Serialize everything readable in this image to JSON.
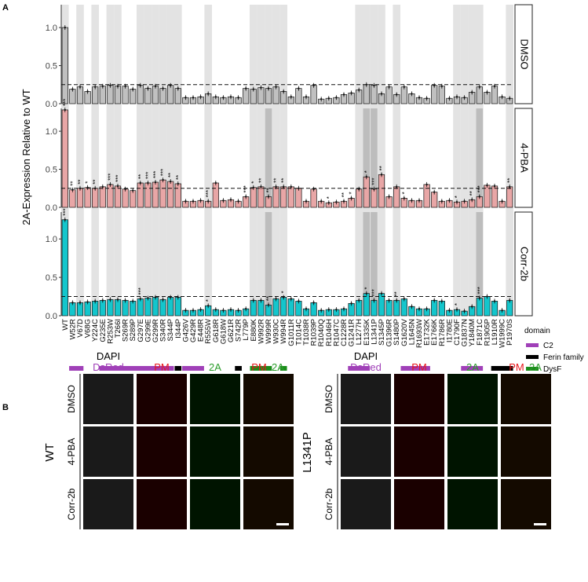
{
  "panel_letters": {
    "a": "A",
    "b": "B"
  },
  "chart_data": {
    "type": "bar",
    "ylabel": "2A-Expression Relative to WT",
    "threshold_line": 0.25,
    "categories": [
      "WT",
      "W52R",
      "V67D",
      "V68G",
      "Y224C",
      "G235E",
      "R253W",
      "T266I",
      "S269R",
      "S289P",
      "G297E",
      "G299E",
      "G299R",
      "S340R",
      "S344P",
      "I344P",
      "G426V",
      "G429R",
      "E448R",
      "R555W",
      "G618R",
      "G618W",
      "G621R",
      "S742R",
      "L779P",
      "E880K",
      "W992R",
      "W999R",
      "W930C",
      "W994R",
      "G1011R",
      "T1014C",
      "T1038R",
      "R1039P",
      "R1040Q",
      "R1046H",
      "R1047C",
      "C1228R",
      "G1241R",
      "L1277H",
      "E1335K",
      "L1341P",
      "S1345P",
      "G1396R",
      "S1480P",
      "G1620V",
      "L1645N",
      "R1693W",
      "E1732K",
      "E1766K",
      "R1786R",
      "I1780E",
      "C1790F",
      "G1837N",
      "Y1840M",
      "F1871C",
      "R1905P",
      "L1910R",
      "W1999C",
      "P1970S"
    ],
    "shaded_categories": [
      "WT",
      "V67D",
      "Y224C",
      "R253W",
      "T266I",
      "G297E",
      "G299E",
      "G299R",
      "S340R",
      "S344P",
      "I344P",
      "R555W",
      "E880K",
      "W992R",
      "W999R",
      "W930C",
      "W994R",
      "L1277H",
      "E1335K",
      "L1341P",
      "S1345P",
      "S1480P",
      "C1790F",
      "G1837N",
      "Y1840M",
      "F1871C",
      "P1970S"
    ],
    "dark_shaded_categories": [
      "W999R",
      "E1335K",
      "L1341P",
      "F1871C"
    ],
    "rows": [
      {
        "label": "DMSO",
        "color": "#c0c0c0",
        "ylim": [
          0,
          1.3
        ],
        "yticks": [
          0.0,
          0.5,
          1.0
        ],
        "values": [
          1.0,
          0.19,
          0.22,
          0.16,
          0.22,
          0.23,
          0.24,
          0.23,
          0.23,
          0.19,
          0.24,
          0.2,
          0.23,
          0.2,
          0.24,
          0.2,
          0.08,
          0.08,
          0.09,
          0.13,
          0.09,
          0.08,
          0.09,
          0.08,
          0.2,
          0.19,
          0.21,
          0.2,
          0.22,
          0.16,
          0.09,
          0.2,
          0.09,
          0.24,
          0.06,
          0.07,
          0.08,
          0.12,
          0.14,
          0.18,
          0.25,
          0.24,
          0.13,
          0.22,
          0.12,
          0.22,
          0.13,
          0.08,
          0.07,
          0.24,
          0.23,
          0.07,
          0.09,
          0.08,
          0.15,
          0.22,
          0.15,
          0.23,
          0.09,
          0.07
        ]
      },
      {
        "label": "4-PBA",
        "color": "#e8a6a6",
        "ylim": [
          0,
          1.3
        ],
        "yticks": [
          0.0,
          0.5,
          1.0
        ],
        "values": [
          1.28,
          0.23,
          0.25,
          0.26,
          0.25,
          0.27,
          0.3,
          0.28,
          0.24,
          0.22,
          0.32,
          0.32,
          0.33,
          0.36,
          0.34,
          0.31,
          0.08,
          0.08,
          0.09,
          0.08,
          0.32,
          0.09,
          0.1,
          0.08,
          0.14,
          0.26,
          0.27,
          0.14,
          0.27,
          0.27,
          0.27,
          0.25,
          0.08,
          0.24,
          0.08,
          0.06,
          0.07,
          0.08,
          0.12,
          0.24,
          0.4,
          0.24,
          0.43,
          0.14,
          0.27,
          0.12,
          0.09,
          0.09,
          0.3,
          0.2,
          0.08,
          0.09,
          0.07,
          0.08,
          0.1,
          0.14,
          0.29,
          0.28,
          0.08,
          0.27
        ]
      },
      {
        "label": "Corr-2b",
        "color": "#14c6cc",
        "ylim": [
          0,
          1.35
        ],
        "yticks": [
          0.0,
          0.5,
          1.0
        ],
        "values": [
          1.25,
          0.17,
          0.17,
          0.18,
          0.19,
          0.2,
          0.21,
          0.21,
          0.2,
          0.19,
          0.22,
          0.23,
          0.24,
          0.21,
          0.24,
          0.24,
          0.07,
          0.07,
          0.08,
          0.13,
          0.08,
          0.07,
          0.08,
          0.07,
          0.09,
          0.2,
          0.2,
          0.14,
          0.22,
          0.24,
          0.22,
          0.19,
          0.09,
          0.17,
          0.07,
          0.08,
          0.08,
          0.09,
          0.16,
          0.2,
          0.29,
          0.2,
          0.29,
          0.2,
          0.2,
          0.22,
          0.12,
          0.09,
          0.09,
          0.2,
          0.19,
          0.07,
          0.08,
          0.06,
          0.12,
          0.23,
          0.25,
          0.19,
          0.07,
          0.2
        ]
      }
    ],
    "significance": [
      {
        "row": "4-PBA",
        "marks": [
          [
            "WT",
            "***"
          ],
          [
            "W52R",
            "**"
          ],
          [
            "V67D",
            "**"
          ],
          [
            "V68G",
            "*"
          ],
          [
            "Y224C",
            "**"
          ],
          [
            "R253W",
            "***"
          ],
          [
            "T266I",
            "***"
          ],
          [
            "G297E",
            "**"
          ],
          [
            "G299E",
            "***"
          ],
          [
            "G299R",
            "***"
          ],
          [
            "S340R",
            "***"
          ],
          [
            "S344P",
            "**"
          ],
          [
            "I344P",
            "**"
          ],
          [
            "R555W",
            "***"
          ],
          [
            "L779P",
            "***"
          ],
          [
            "E880K",
            "*"
          ],
          [
            "W992R",
            "**"
          ],
          [
            "W999R",
            "**"
          ],
          [
            "W930C",
            "**"
          ],
          [
            "W994R",
            "**"
          ],
          [
            "R1046H",
            "*"
          ],
          [
            "C1228R",
            "**"
          ],
          [
            "G1241R",
            "*"
          ],
          [
            "E1335K",
            "*"
          ],
          [
            "L1341P",
            "***"
          ],
          [
            "S1345P",
            "**"
          ],
          [
            "G1620V",
            "*"
          ],
          [
            "C1790F",
            "*"
          ],
          [
            "Y1840M",
            "**"
          ],
          [
            "F1871C",
            "***"
          ],
          [
            "P1970S",
            "**"
          ]
        ]
      },
      {
        "row": "Corr-2b",
        "marks": [
          [
            "WT",
            "***"
          ],
          [
            "G297E",
            "***"
          ],
          [
            "R555W",
            "*"
          ],
          [
            "W999R",
            "**"
          ],
          [
            "W994R",
            "*"
          ],
          [
            "E1335K",
            "*"
          ],
          [
            "L1341P",
            "***"
          ],
          [
            "S1480P",
            "**"
          ],
          [
            "C1790F",
            "*"
          ],
          [
            "F1871C",
            "***"
          ]
        ]
      }
    ],
    "domains": {
      "title": "domain",
      "legend": [
        {
          "name": "C2",
          "color": "#a040b8"
        },
        {
          "name": "Ferin family",
          "color": "#000000"
        },
        {
          "name": "DysF",
          "color": "#1a8c1a"
        }
      ],
      "bars": [
        {
          "domain": "C2",
          "from": "W52R",
          "to": "V67D"
        },
        {
          "domain": "C2",
          "from": "G235E",
          "to": "S344P"
        },
        {
          "domain": "Ferin family",
          "from": "I344P",
          "to": "I344P"
        },
        {
          "domain": "C2",
          "from": "G426V",
          "to": "E448R"
        },
        {
          "domain": "Ferin family",
          "from": "S742R",
          "to": "S742R"
        },
        {
          "domain": "DysF",
          "from": "E880K",
          "to": "W999R"
        },
        {
          "domain": "DysF",
          "from": "W994R",
          "to": "W994R"
        },
        {
          "domain": "C2",
          "from": "G1241R",
          "to": "E1335K"
        },
        {
          "domain": "C2",
          "from": "G1620V",
          "to": "E1732K"
        },
        {
          "domain": "C2",
          "from": "G1837N",
          "to": "F1871C"
        },
        {
          "domain": "Ferin family",
          "from": "L1910R",
          "to": "P1970S"
        }
      ]
    }
  },
  "micrographs": {
    "groups": [
      {
        "label": "WT",
        "scale_bar": true
      },
      {
        "label": "L1341P",
        "scale_bar": true
      }
    ],
    "columns": [
      {
        "lines": [
          {
            "text": "DAPI",
            "color": "#000000"
          },
          {
            "text": "DsRed",
            "color": "#a040b8"
          }
        ]
      },
      {
        "lines": [
          {
            "text": "PM",
            "color": "#e8161b"
          }
        ]
      },
      {
        "lines": [
          {
            "text": "2A",
            "color": "#2a9d2a"
          }
        ]
      },
      {
        "lines": [
          {
            "text": "PM",
            "color": "#e8161b"
          },
          {
            "text": "2A",
            "color": "#2a9d2a"
          }
        ]
      }
    ],
    "rows": [
      "DMSO",
      "4-PBA",
      "Corr-2b"
    ]
  }
}
